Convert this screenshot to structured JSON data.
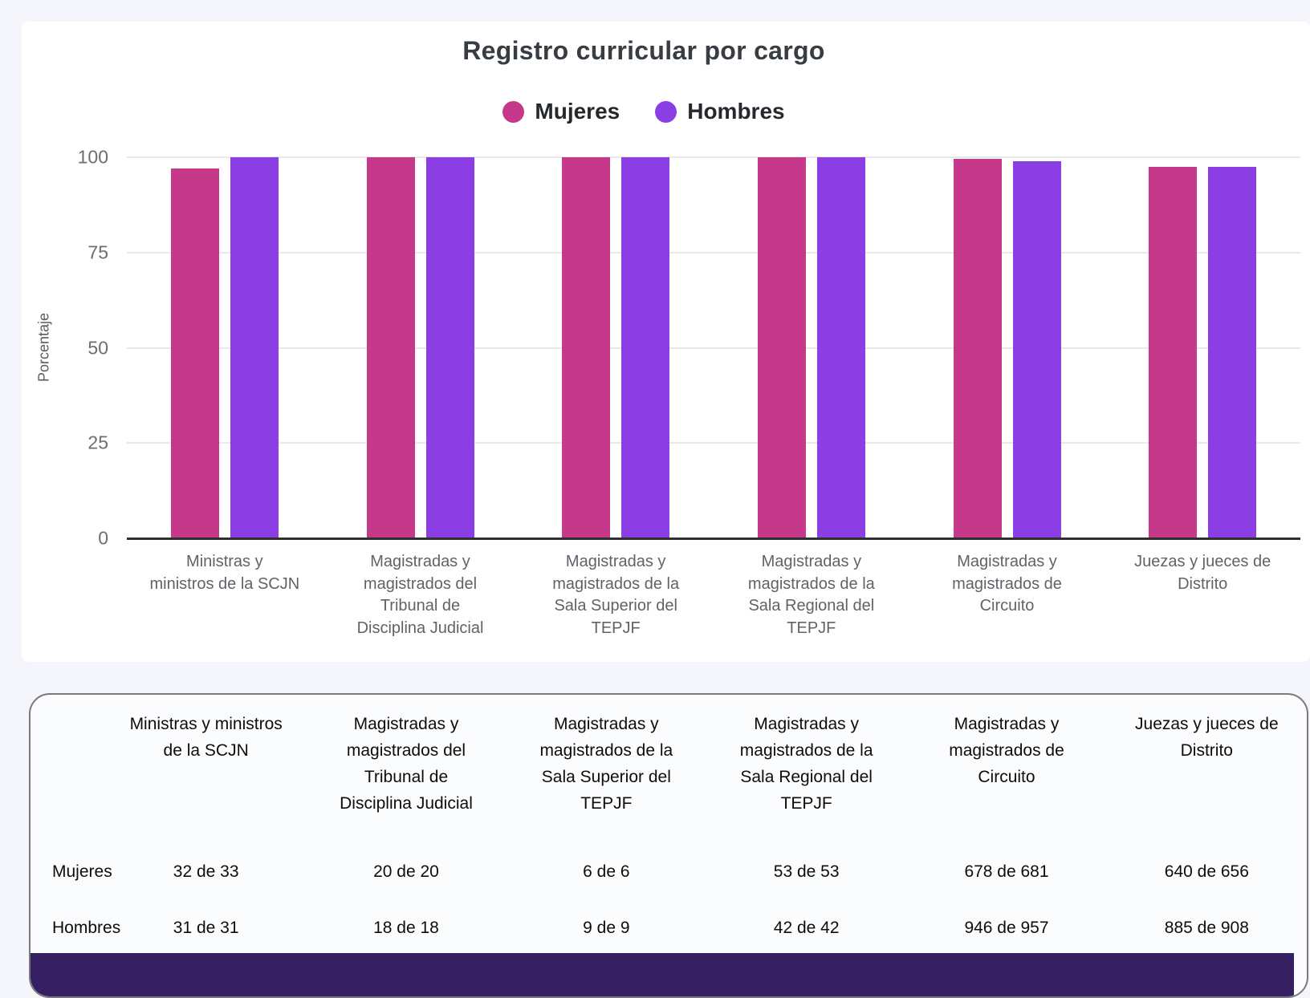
{
  "page": {
    "background": "#f5f6fb"
  },
  "chart": {
    "title": "Registro curricular por cargo",
    "legend": [
      {
        "label": "Mujeres",
        "color": "#c6398a"
      },
      {
        "label": "Hombres",
        "color": "#8a3ee4"
      }
    ],
    "y_axis": {
      "title": "Porcentaje",
      "ticks": [
        "0",
        "25",
        "50",
        "75",
        "100"
      ]
    },
    "x_labels": [
      {
        "lines": [
          "Ministras y",
          "ministros de la SCJN"
        ]
      },
      {
        "lines": [
          "Magistradas y",
          "magistrados del",
          "Tribunal de",
          "Disciplina Judicial"
        ]
      },
      {
        "lines": [
          "Magistradas y",
          "magistrados de la",
          "Sala Superior del",
          "TEPJF"
        ]
      },
      {
        "lines": [
          "Magistradas y",
          "magistrados de la",
          "Sala Regional del",
          "TEPJF"
        ]
      },
      {
        "lines": [
          "Magistradas y",
          "magistrados de",
          "Circuito"
        ]
      },
      {
        "lines": [
          "Juezas y jueces de",
          "Distrito"
        ]
      }
    ]
  },
  "chart_data": {
    "type": "bar",
    "title": "Registro curricular por cargo",
    "categories": [
      "Ministras y ministros de la SCJN",
      "Magistradas y magistrados del Tribunal de Disciplina Judicial",
      "Magistradas y magistrados de la Sala Superior del TEPJF",
      "Magistradas y magistrados de la Sala Regional del TEPJF",
      "Magistradas y magistrados de Circuito",
      "Juezas y jueces de Distrito"
    ],
    "series": [
      {
        "name": "Mujeres",
        "color": "#c6398a",
        "values": [
          96.97,
          100,
          100,
          100,
          99.56,
          97.56
        ],
        "counts": [
          "32 de 33",
          "20 de 20",
          "6 de 6",
          "53 de 53",
          "678 de 681",
          "640 de 656"
        ]
      },
      {
        "name": "Hombres",
        "color": "#8a3ee4",
        "values": [
          100,
          100,
          100,
          100,
          98.85,
          97.47
        ],
        "counts": [
          "31 de 31",
          "18 de 18",
          "9 de 9",
          "42 de 42",
          "946 de 957",
          "885 de 908"
        ]
      }
    ],
    "xlabel": "",
    "ylabel": "Porcentaje",
    "ylim": [
      0,
      100
    ],
    "grid": true,
    "legend_position": "top"
  },
  "table": {
    "columns": [
      {
        "lines": [
          "Ministras y ministros",
          "de la SCJN"
        ]
      },
      {
        "lines": [
          "Magistradas y",
          "magistrados del",
          "Tribunal de",
          "Disciplina Judicial"
        ]
      },
      {
        "lines": [
          "Magistradas y",
          "magistrados de la",
          "Sala Superior del",
          "TEPJF"
        ]
      },
      {
        "lines": [
          "Magistradas y",
          "magistrados de la",
          "Sala Regional del",
          "TEPJF"
        ]
      },
      {
        "lines": [
          "Magistradas y",
          "magistrados de",
          "Circuito"
        ]
      },
      {
        "lines": [
          "Juezas y jueces de",
          "Distrito"
        ]
      }
    ],
    "rows": [
      {
        "label": "Mujeres",
        "values": [
          "32 de 33",
          "20 de 20",
          "6 de 6",
          "53 de 53",
          "678 de 681",
          "640 de 656"
        ]
      },
      {
        "label": "Hombres",
        "values": [
          "31 de 31",
          "18 de 18",
          "9 de 9",
          "42 de 42",
          "946 de 957",
          "885 de 908"
        ]
      }
    ]
  },
  "footer": {
    "bar_color": "#371f63"
  }
}
